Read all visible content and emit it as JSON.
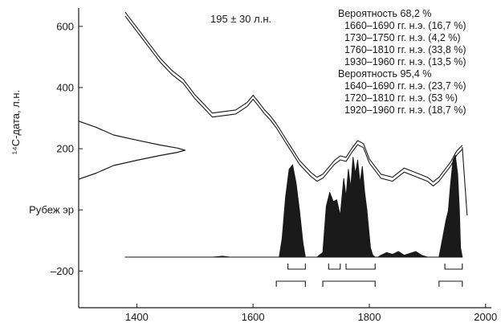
{
  "chart_data": {
    "type": "line",
    "title": "",
    "xlabel": "",
    "ylabel": "¹⁴C-дата, л.н.",
    "xlim": [
      1300,
      2010
    ],
    "ylim": [
      -320,
      660
    ],
    "x_ticks": [
      1400,
      1600,
      1800,
      2000
    ],
    "y_ticks": [
      {
        "value": 600,
        "label": "600"
      },
      {
        "value": 400,
        "label": "400"
      },
      {
        "value": 200,
        "label": "200"
      },
      {
        "value": 0,
        "label": "Рубеж эр"
      },
      {
        "value": -200,
        "label": "–200"
      }
    ],
    "radiocarbon_date": "195 ± 30 л.н.",
    "measured_distribution": {
      "center": 195,
      "sigma": 30,
      "x": [
        1300,
        1330,
        1360,
        1400,
        1440,
        1470,
        1483,
        1470,
        1440,
        1400,
        1360,
        1330,
        1300
      ],
      "y": [
        290,
        270,
        245,
        228,
        212,
        202,
        195,
        188,
        178,
        162,
        145,
        120,
        100
      ]
    },
    "calibration_curve": {
      "name": "",
      "x": [
        1380,
        1400,
        1420,
        1440,
        1460,
        1480,
        1500,
        1520,
        1530,
        1550,
        1570,
        1590,
        1600,
        1610,
        1620,
        1630,
        1640,
        1650,
        1660,
        1680,
        1700,
        1710,
        1720,
        1740,
        1750,
        1760,
        1770,
        1780,
        1790,
        1800,
        1810,
        1820,
        1840,
        1860,
        1880,
        1900,
        1910,
        1920,
        1940,
        1950,
        1960
      ],
      "y": [
        640,
        590,
        540,
        490,
        450,
        420,
        370,
        330,
        310,
        315,
        320,
        345,
        368,
        345,
        320,
        300,
        275,
        245,
        215,
        155,
        115,
        100,
        110,
        155,
        170,
        165,
        195,
        220,
        210,
        160,
        135,
        110,
        100,
        130,
        115,
        100,
        85,
        100,
        150,
        185,
        205
      ]
    },
    "probability_distribution": {
      "x": [
        1380,
        1530,
        1548,
        1560,
        1645,
        1650,
        1656,
        1662,
        1668,
        1674,
        1680,
        1686,
        1690,
        1710,
        1720,
        1726,
        1732,
        1738,
        1744,
        1750,
        1756,
        1760,
        1764,
        1768,
        1772,
        1776,
        1780,
        1784,
        1788,
        1792,
        1796,
        1802,
        1806,
        1810,
        1815,
        1820,
        1830,
        1840,
        1850,
        1860,
        1870,
        1880,
        1890,
        1900,
        1920,
        1926,
        1932,
        1936,
        1940,
        1944,
        1948,
        1952,
        1955,
        1957,
        1960
      ],
      "y": [
        0,
        0,
        0.01,
        0,
        0,
        0.2,
        0.65,
        0.95,
        1.0,
        0.8,
        0.5,
        0.15,
        0,
        0,
        0.05,
        0.55,
        0.7,
        0.6,
        0.62,
        0.45,
        0.85,
        0.65,
        0.95,
        0.75,
        1.08,
        0.9,
        1.05,
        0.8,
        0.98,
        0.7,
        0.5,
        0.1,
        0.02,
        0,
        0,
        0.02,
        0.05,
        0.03,
        0.06,
        0.02,
        0.04,
        0.06,
        0.02,
        0,
        0,
        0.2,
        0.4,
        0.5,
        0.8,
        1.05,
        1.1,
        0.9,
        0.5,
        0.1,
        0
      ]
    },
    "probability_ranges": {
      "sigma1": {
        "heading": "Вероятность 68,2 %",
        "items": [
          {
            "label": "1660–1690 гг. н.э. (16,7 %)",
            "start": 1660,
            "end": 1690
          },
          {
            "label": "1730–1750 гг. н.э. (4,2 %)",
            "start": 1730,
            "end": 1750
          },
          {
            "label": "1760–1810 гг. н.э. (33,8 %)",
            "start": 1760,
            "end": 1810
          },
          {
            "label": "1930–1960 гг. н.э. (13,5 %)",
            "start": 1930,
            "end": 1960
          }
        ]
      },
      "sigma2": {
        "heading": "Вероятность 95,4 %",
        "items": [
          {
            "label": "1640–1690 гг. н.э. (23,7 %)",
            "start": 1640,
            "end": 1690
          },
          {
            "label": "1720–1810 гг. н.э. (53 %)",
            "start": 1720,
            "end": 1810
          },
          {
            "label": "1920–1960 гг. н.э. (18,7 %)",
            "start": 1920,
            "end": 1960
          }
        ]
      }
    },
    "grid": false,
    "colors": {
      "ink": "#1a1a1a",
      "background": "#ffffff"
    }
  }
}
